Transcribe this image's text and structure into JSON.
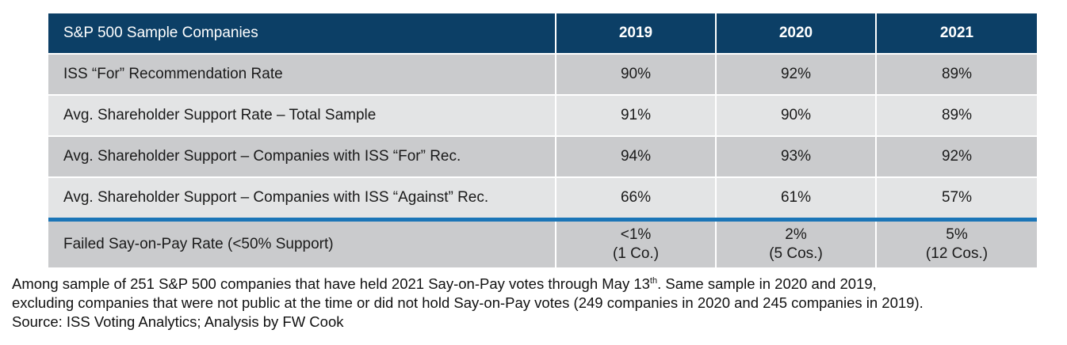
{
  "table": {
    "header": {
      "label": "S&P 500 Sample Companies",
      "years": [
        "2019",
        "2020",
        "2021"
      ]
    },
    "rows": [
      {
        "label": "ISS “For” Recommendation Rate",
        "values": [
          "90%",
          "92%",
          "89%"
        ]
      },
      {
        "label": "Avg. Shareholder Support Rate – Total Sample",
        "values": [
          "91%",
          "90%",
          "89%"
        ]
      },
      {
        "label": "Avg. Shareholder Support – Companies with ISS “For” Rec.",
        "values": [
          "94%",
          "93%",
          "92%"
        ]
      },
      {
        "label": "Avg. Shareholder Support – Companies with ISS “Against” Rec.",
        "values": [
          "66%",
          "61%",
          "57%"
        ]
      }
    ],
    "failed_row": {
      "label": "Failed Say-on-Pay Rate (<50% Support)",
      "values": [
        {
          "rate": "<1%",
          "count": "(1 Co.)"
        },
        {
          "rate": "2%",
          "count": "(5 Cos.)"
        },
        {
          "rate": "5%",
          "count": "(12 Cos.)"
        }
      ]
    }
  },
  "footnote": {
    "line1_prefix": "Among sample of 251 S&P 500 companies that have held 2021 Say-on-Pay votes through May 13",
    "line1_sup": "th",
    "line1_suffix": ". Same sample in 2020 and 2019,",
    "line2": "excluding companies that were not public at the time or did not hold Say-on-Pay votes (249 companies in 2020 and 245 companies in 2019).",
    "line3": "Source: ISS Voting Analytics; Analysis by FW Cook"
  },
  "colors": {
    "header_bg": "#0c3f66",
    "row_dark": "#cacbcd",
    "row_light": "#e3e4e5",
    "divider_blue": "#1b75b7"
  }
}
